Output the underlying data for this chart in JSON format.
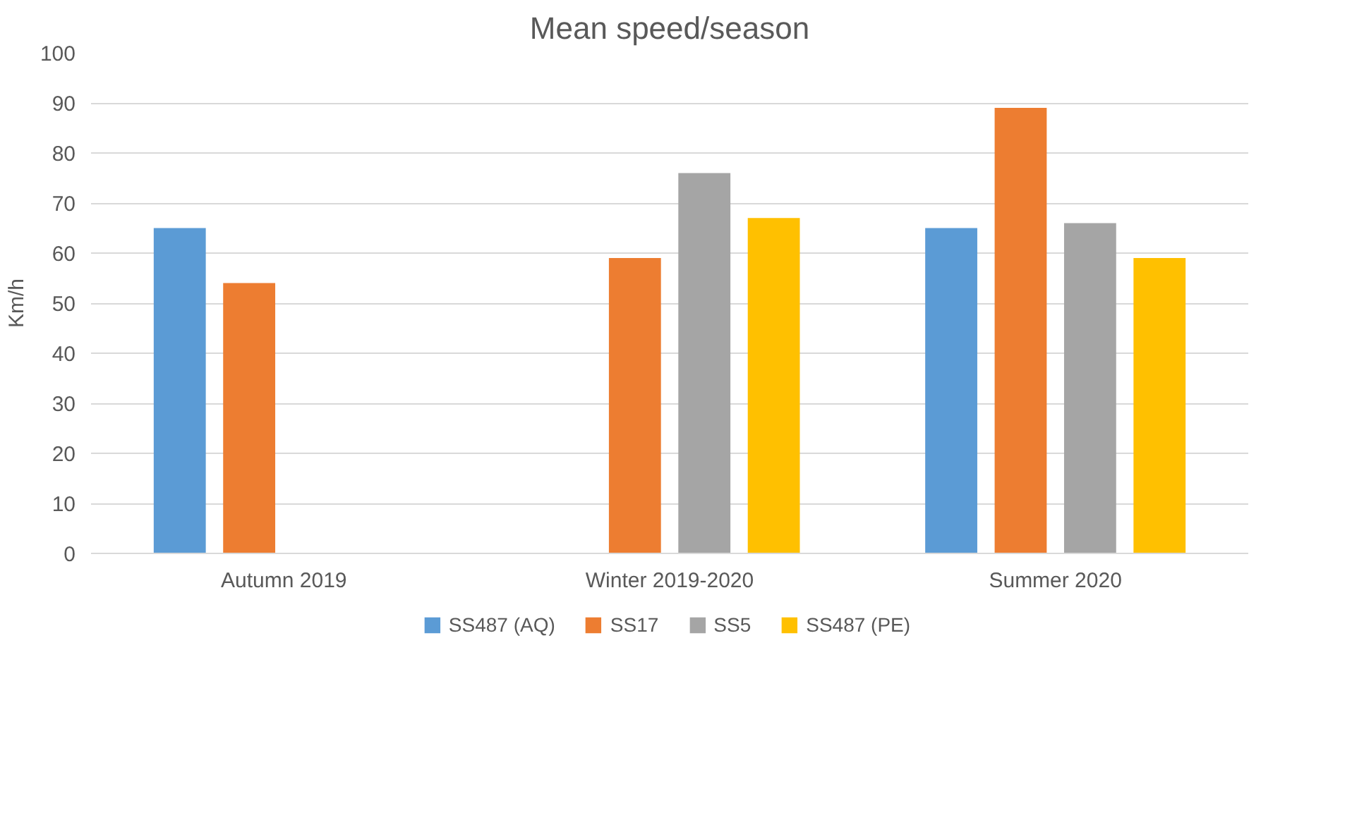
{
  "chart_data": {
    "type": "bar",
    "title": "Mean speed/season",
    "ylabel": "Km/h",
    "categories": [
      "Autumn 2019",
      "Winter 2019-2020",
      "Summer 2020"
    ],
    "series": [
      {
        "name": "SS487 (AQ)",
        "color": "#5b9bd5",
        "values": [
          65,
          null,
          65
        ]
      },
      {
        "name": "SS17",
        "color": "#ed7d31",
        "values": [
          54,
          59,
          89
        ]
      },
      {
        "name": "SS5",
        "color": "#a5a5a5",
        "values": [
          null,
          76,
          66
        ]
      },
      {
        "name": "SS487 (PE)",
        "color": "#ffc000",
        "values": [
          null,
          67,
          59
        ]
      }
    ],
    "ylim": [
      0,
      100
    ],
    "yticks": [
      0,
      10,
      20,
      30,
      40,
      50,
      60,
      70,
      80,
      90,
      100
    ],
    "grid": "y",
    "legend": "bottom"
  }
}
